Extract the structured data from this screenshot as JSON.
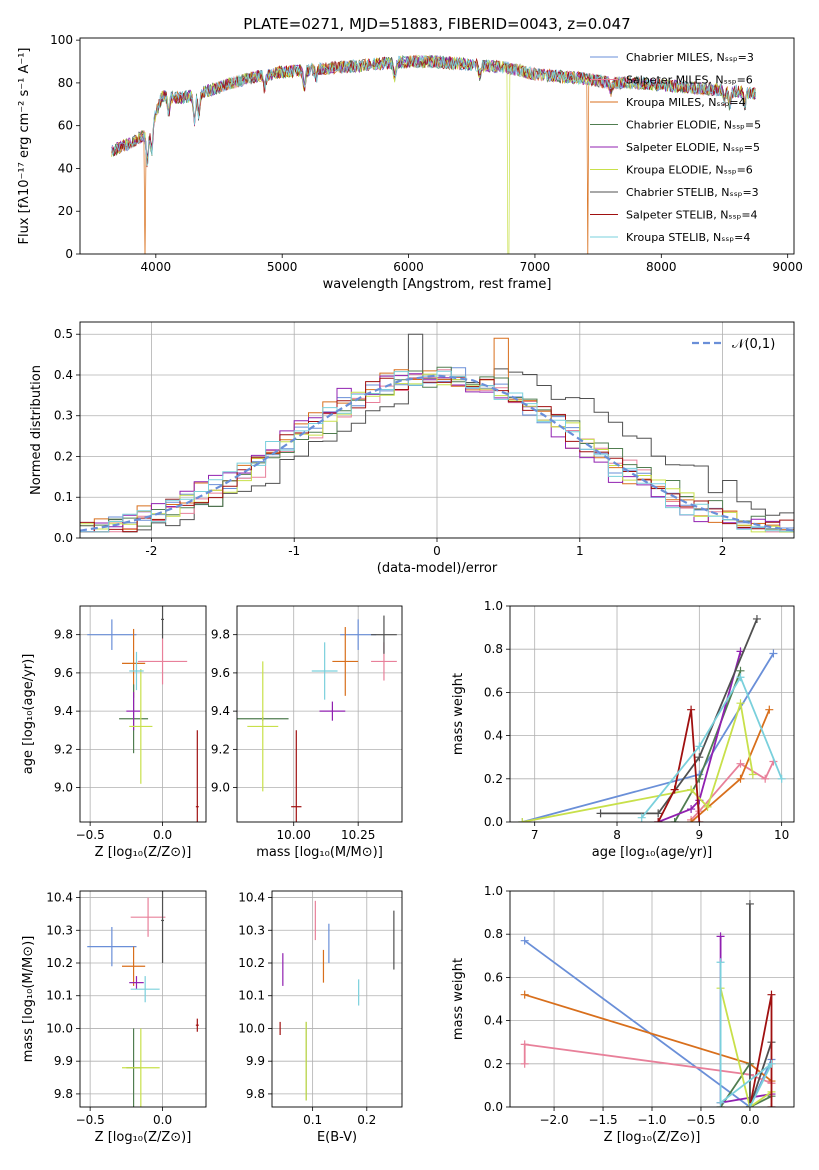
{
  "figure": {
    "title": "PLATE=0271, MJD=51883, FIBERID=0043, z=0.047"
  },
  "colors": [
    "#6a8fd8",
    "#e8809a",
    "#d86f1c",
    "#507d50",
    "#9020b0",
    "#c8e04a",
    "#505050",
    "#a01010",
    "#7ad0dc"
  ],
  "chart_data": [
    {
      "id": "spectrum",
      "type": "line",
      "xlabel": "wavelength [Angstrom, rest frame]",
      "ylabel": "Flux [fλ10⁻¹⁷ erg cm⁻² s⁻¹ A⁻¹]",
      "xlim": [
        3400,
        9050
      ],
      "ylim": [
        0,
        101
      ],
      "xticks": [
        4000,
        5000,
        6000,
        7000,
        8000,
        9000
      ],
      "yticks": [
        0,
        20,
        40,
        60,
        80,
        100
      ],
      "legend_position": "right",
      "series": [
        {
          "name": "Chabrier MILES, Nₛₛₚ=3"
        },
        {
          "name": "Salpeter MILES, Nₛₛₚ=6"
        },
        {
          "name": "Kroupa MILES, Nₛₛₚ=4"
        },
        {
          "name": "Chabrier ELODIE, Nₛₛₚ=5"
        },
        {
          "name": "Salpeter ELODIE, Nₛₛₚ=5"
        },
        {
          "name": "Kroupa ELODIE, Nₛₛₚ=6"
        },
        {
          "name": "Chabrier STELIB, Nₛₛₚ=3"
        },
        {
          "name": "Salpeter STELIB, Nₛₛₚ=4"
        },
        {
          "name": "Kroupa STELIB, Nₛₛₚ=4"
        }
      ],
      "continuum": {
        "x": [
          3650,
          3800,
          3950,
          4050,
          4200,
          4400,
          4600,
          4800,
          5000,
          5200,
          5400,
          5600,
          5800,
          6000,
          6200,
          6400,
          6600,
          6800,
          7000,
          7200,
          7400,
          7600,
          7800,
          8000,
          8200,
          8400,
          8600,
          8750
        ],
        "y": [
          48,
          52,
          57,
          74,
          73,
          76,
          80,
          83,
          85,
          86,
          87,
          88,
          89,
          90,
          90,
          89,
          88,
          87,
          84,
          83,
          82,
          80,
          80,
          79,
          78,
          77,
          76,
          75
        ]
      },
      "absorption_lines": [
        {
          "x": 3933,
          "depth": 14
        },
        {
          "x": 3968,
          "depth": 12
        },
        {
          "x": 4102,
          "depth": 8
        },
        {
          "x": 4305,
          "depth": 12
        },
        {
          "x": 4340,
          "depth": 10
        },
        {
          "x": 4861,
          "depth": 6
        },
        {
          "x": 5175,
          "depth": 8
        },
        {
          "x": 5270,
          "depth": 4
        },
        {
          "x": 5890,
          "depth": 7
        },
        {
          "x": 6563,
          "depth": 5
        },
        {
          "x": 7600,
          "depth": 4
        },
        {
          "x": 8500,
          "depth": 5
        },
        {
          "x": 8542,
          "depth": 7
        },
        {
          "x": 8662,
          "depth": 6
        }
      ],
      "masked_drops": [
        {
          "x": 3915,
          "series": 2
        },
        {
          "x": 6790,
          "series": 5
        },
        {
          "x": 7420,
          "series": 2
        }
      ]
    },
    {
      "id": "residuals",
      "type": "area",
      "xlabel": "(data-model)/error",
      "ylabel": "Normed distribution",
      "xlim": [
        -2.5,
        2.5
      ],
      "ylim": [
        0,
        0.53
      ],
      "xticks": [
        -2,
        -1,
        0,
        1,
        2
      ],
      "yticks": [
        0.0,
        0.1,
        0.2,
        0.3,
        0.4,
        0.5
      ],
      "grid": true,
      "legend": "𝒩(0,1)",
      "legend_position": "top-right",
      "bin_width": 0.1,
      "bins_start": -2.5,
      "reference": {
        "name": "𝒩(0,1)",
        "x": [
          -2.5,
          -2.25,
          -2.0,
          -1.75,
          -1.5,
          -1.25,
          -1.0,
          -0.75,
          -0.5,
          -0.25,
          0.0,
          0.25,
          0.5,
          0.75,
          1.0,
          1.25,
          1.5,
          1.75,
          2.0,
          2.25,
          2.5
        ],
        "y": [
          0.018,
          0.032,
          0.054,
          0.086,
          0.13,
          0.183,
          0.242,
          0.301,
          0.352,
          0.387,
          0.399,
          0.387,
          0.352,
          0.301,
          0.242,
          0.183,
          0.13,
          0.086,
          0.054,
          0.032,
          0.018
        ]
      },
      "offsets": [
        0.0,
        0.05,
        -0.05,
        0.1,
        -0.1,
        0.03,
        0.35,
        0.0,
        -0.03
      ]
    },
    {
      "id": "z-age",
      "type": "scatter",
      "xlabel": "Z [log₁₀(Z/Z⊙)]",
      "ylabel": "age  [log₁₀(age/yr)]",
      "xlim": [
        -0.57,
        0.3
      ],
      "ylim": [
        8.82,
        9.95
      ],
      "xticks": [
        -0.5,
        0.0
      ],
      "xtick_labels": [
        "−0.5",
        "0.0"
      ],
      "yticks": [
        9.0,
        9.2,
        9.4,
        9.6,
        9.8
      ],
      "grid": true,
      "points": [
        {
          "x": -0.35,
          "y": 9.8,
          "xe": 0.17,
          "ye": 0.08,
          "c": 0
        },
        {
          "x": 0.0,
          "y": 9.66,
          "xe": 0.17,
          "ye": 0.12,
          "c": 1
        },
        {
          "x": -0.2,
          "y": 9.65,
          "xe": 0.08,
          "ye": 0.18,
          "c": 2
        },
        {
          "x": -0.2,
          "y": 9.36,
          "xe": 0.1,
          "ye": 0.18,
          "c": 3
        },
        {
          "x": -0.2,
          "y": 9.4,
          "xe": 0.05,
          "ye": 0.1,
          "c": 4
        },
        {
          "x": -0.15,
          "y": 9.32,
          "xe": 0.08,
          "ye": 0.3,
          "c": 5
        },
        {
          "x": 0.0,
          "y": 9.88,
          "xe": 0.01,
          "ye": 0.1,
          "c": 6
        },
        {
          "x": 0.24,
          "y": 8.9,
          "xe": 0.01,
          "ye": 0.4,
          "c": 7
        },
        {
          "x": -0.18,
          "y": 9.61,
          "xe": 0.05,
          "ye": 0.1,
          "c": 8
        }
      ]
    },
    {
      "id": "mass-age",
      "type": "scatter",
      "xlabel": "mass [log₁₀(M/M⊙)]",
      "xlim": [
        9.78,
        10.42
      ],
      "ylim": [
        8.82,
        9.95
      ],
      "xticks": [
        10.0,
        10.25
      ],
      "xtick_labels": [
        "10.00",
        "10.25"
      ],
      "yticks": [
        9.0,
        9.2,
        9.4,
        9.6,
        9.8
      ],
      "grid": true,
      "points": [
        {
          "x": 10.25,
          "y": 9.8,
          "xe": 0.07,
          "ye": 0.08,
          "c": 0
        },
        {
          "x": 10.35,
          "y": 9.66,
          "xe": 0.05,
          "ye": 0.1,
          "c": 1
        },
        {
          "x": 10.2,
          "y": 9.66,
          "xe": 0.05,
          "ye": 0.18,
          "c": 2
        },
        {
          "x": 9.88,
          "y": 9.36,
          "xe": 0.1,
          "ye": 0.01,
          "c": 3
        },
        {
          "x": 10.15,
          "y": 9.4,
          "xe": 0.05,
          "ye": 0.05,
          "c": 4
        },
        {
          "x": 9.88,
          "y": 9.32,
          "xe": 0.06,
          "ye": 0.34,
          "c": 5
        },
        {
          "x": 10.35,
          "y": 9.8,
          "xe": 0.05,
          "ye": 0.1,
          "c": 6
        },
        {
          "x": 10.01,
          "y": 8.9,
          "xe": 0.02,
          "ye": 0.4,
          "c": 7
        },
        {
          "x": 10.12,
          "y": 9.61,
          "xe": 0.05,
          "ye": 0.15,
          "c": 8
        }
      ]
    },
    {
      "id": "age-weight",
      "type": "line",
      "xlabel": "age  [log₁₀(age/yr)]",
      "ylabel": "mass weight",
      "xlim": [
        6.7,
        10.15
      ],
      "ylim": [
        0,
        1.0
      ],
      "xticks": [
        7,
        8,
        9,
        10
      ],
      "yticks": [
        0.0,
        0.2,
        0.4,
        0.6,
        0.8,
        1.0
      ],
      "grid": true,
      "series": [
        {
          "c": 0,
          "x": [
            6.85,
            9.0,
            9.9
          ],
          "y": [
            0.0,
            0.22,
            0.78
          ]
        },
        {
          "c": 1,
          "x": [
            8.9,
            9.0,
            9.5,
            9.8,
            9.9
          ],
          "y": [
            0.01,
            0.05,
            0.27,
            0.2,
            0.28
          ]
        },
        {
          "c": 2,
          "x": [
            8.9,
            9.5,
            9.85
          ],
          "y": [
            0.0,
            0.2,
            0.52
          ]
        },
        {
          "c": 3,
          "x": [
            8.7,
            9.0,
            9.5
          ],
          "y": [
            0.0,
            0.2,
            0.7
          ]
        },
        {
          "c": 4,
          "x": [
            8.5,
            8.9,
            9.0,
            9.5
          ],
          "y": [
            0.0,
            0.06,
            0.1,
            0.79
          ]
        },
        {
          "c": 5,
          "x": [
            6.85,
            8.9,
            9.1,
            9.5,
            9.65
          ],
          "y": [
            0.0,
            0.15,
            0.07,
            0.55,
            0.22
          ]
        },
        {
          "c": 6,
          "x": [
            7.8,
            8.5,
            9.0,
            9.7
          ],
          "y": [
            0.04,
            0.04,
            0.3,
            0.94
          ]
        },
        {
          "c": 7,
          "x": [
            8.5,
            8.7,
            8.9,
            9.0
          ],
          "y": [
            0.0,
            0.15,
            0.52,
            0.0
          ]
        },
        {
          "c": 8,
          "x": [
            8.3,
            9.0,
            9.5,
            10.0
          ],
          "y": [
            0.02,
            0.35,
            0.67,
            0.2
          ]
        }
      ]
    },
    {
      "id": "z-mass",
      "type": "scatter",
      "xlabel": "Z [log₁₀(Z/Z⊙)]",
      "ylabel": "mass [log₁₀(M/M⊙)]",
      "xlim": [
        -0.57,
        0.3
      ],
      "ylim": [
        9.76,
        10.42
      ],
      "xticks": [
        -0.5,
        0.0
      ],
      "xtick_labels": [
        "−0.5",
        "0.0"
      ],
      "yticks": [
        9.8,
        9.9,
        10.0,
        10.1,
        10.2,
        10.3,
        10.4
      ],
      "grid": true,
      "points": [
        {
          "x": -0.35,
          "y": 10.25,
          "xe": 0.17,
          "ye": 0.06,
          "c": 0
        },
        {
          "x": -0.1,
          "y": 10.34,
          "xe": 0.12,
          "ye": 0.06,
          "c": 1
        },
        {
          "x": -0.2,
          "y": 10.19,
          "xe": 0.08,
          "ye": 0.06,
          "c": 2
        },
        {
          "x": -0.2,
          "y": 9.88,
          "xe": 0.05,
          "ye": 0.12,
          "c": 3
        },
        {
          "x": -0.18,
          "y": 10.14,
          "xe": 0.05,
          "ye": 0.02,
          "c": 4
        },
        {
          "x": -0.15,
          "y": 9.88,
          "xe": 0.13,
          "ye": 0.12,
          "c": 5
        },
        {
          "x": 0.0,
          "y": 10.33,
          "xe": 0.01,
          "ye": 0.13,
          "c": 6
        },
        {
          "x": 0.24,
          "y": 10.01,
          "xe": 0.01,
          "ye": 0.02,
          "c": 7
        },
        {
          "x": -0.12,
          "y": 10.12,
          "xe": 0.1,
          "ye": 0.04,
          "c": 8
        }
      ]
    },
    {
      "id": "ebv-mass",
      "type": "scatter",
      "xlabel": "E(B-V)",
      "xlim": [
        0.025,
        0.265
      ],
      "ylim": [
        9.76,
        10.42
      ],
      "xticks": [
        0.1,
        0.2
      ],
      "xtick_labels": [
        "0.1",
        "0.2"
      ],
      "yticks": [
        9.8,
        9.9,
        10.0,
        10.1,
        10.2,
        10.3,
        10.4
      ],
      "grid": true,
      "points": [
        {
          "x": 0.13,
          "y": 10.26,
          "xe": 0.0,
          "ye": 0.06,
          "c": 0
        },
        {
          "x": 0.105,
          "y": 10.33,
          "xe": 0.0,
          "ye": 0.06,
          "c": 1
        },
        {
          "x": 0.12,
          "y": 10.19,
          "xe": 0.0,
          "ye": 0.05,
          "c": 2
        },
        {
          "x": 0.088,
          "y": 9.9,
          "xe": 0.0,
          "ye": 0.12,
          "c": 3
        },
        {
          "x": 0.045,
          "y": 10.18,
          "xe": 0.0,
          "ye": 0.05,
          "c": 4
        },
        {
          "x": 0.088,
          "y": 9.9,
          "xe": 0.0,
          "ye": 0.12,
          "c": 5
        },
        {
          "x": 0.25,
          "y": 10.27,
          "xe": 0.0,
          "ye": 0.09,
          "c": 6
        },
        {
          "x": 0.04,
          "y": 10.0,
          "xe": 0.0,
          "ye": 0.02,
          "c": 7
        },
        {
          "x": 0.185,
          "y": 10.11,
          "xe": 0.0,
          "ye": 0.04,
          "c": 8
        }
      ]
    },
    {
      "id": "z-weight",
      "type": "line",
      "xlabel": "Z [log₁₀(Z/Z⊙)]",
      "ylabel": "mass weight",
      "xlim": [
        -2.45,
        0.45
      ],
      "ylim": [
        0,
        1.0
      ],
      "xticks": [
        -2.0,
        -1.5,
        -1.0,
        -0.5,
        0.0
      ],
      "xtick_labels": [
        "−2.0",
        "−1.5",
        "−1.0",
        "−0.5",
        "0.0"
      ],
      "yticks": [
        0.0,
        0.2,
        0.4,
        0.6,
        0.8,
        1.0
      ],
      "grid": true,
      "series": [
        {
          "c": 0,
          "x": [
            -2.3,
            0.0,
            0.22
          ],
          "y": [
            0.77,
            0.0,
            0.22
          ]
        },
        {
          "c": 2,
          "x": [
            -2.3,
            0.0,
            0.22
          ],
          "y": [
            0.52,
            0.2,
            0.12
          ]
        },
        {
          "c": 1,
          "x": [
            -2.3,
            -2.3,
            0.0,
            0.22
          ],
          "y": [
            0.2,
            0.29,
            0.15,
            0.11
          ]
        },
        {
          "c": 3,
          "x": [
            -0.3,
            0.0,
            0.0,
            0.22
          ],
          "y": [
            0.0,
            0.2,
            0.0,
            0.05
          ]
        },
        {
          "c": 4,
          "x": [
            -0.3,
            -0.3,
            0.22
          ],
          "y": [
            0.79,
            0.02,
            0.06
          ]
        },
        {
          "c": 5,
          "x": [
            -0.3,
            0.0,
            0.22
          ],
          "y": [
            0.55,
            0.0,
            0.07
          ]
        },
        {
          "c": 6,
          "x": [
            0.0,
            0.0,
            0.22
          ],
          "y": [
            0.94,
            0.0,
            0.3
          ]
        },
        {
          "c": 7,
          "x": [
            0.0,
            0.22,
            0.22
          ],
          "y": [
            0.0,
            0.52,
            0.0
          ]
        },
        {
          "c": 8,
          "x": [
            -0.3,
            -0.3,
            0.22,
            0.0
          ],
          "y": [
            0.67,
            0.02,
            0.2,
            0.0
          ]
        }
      ]
    }
  ]
}
